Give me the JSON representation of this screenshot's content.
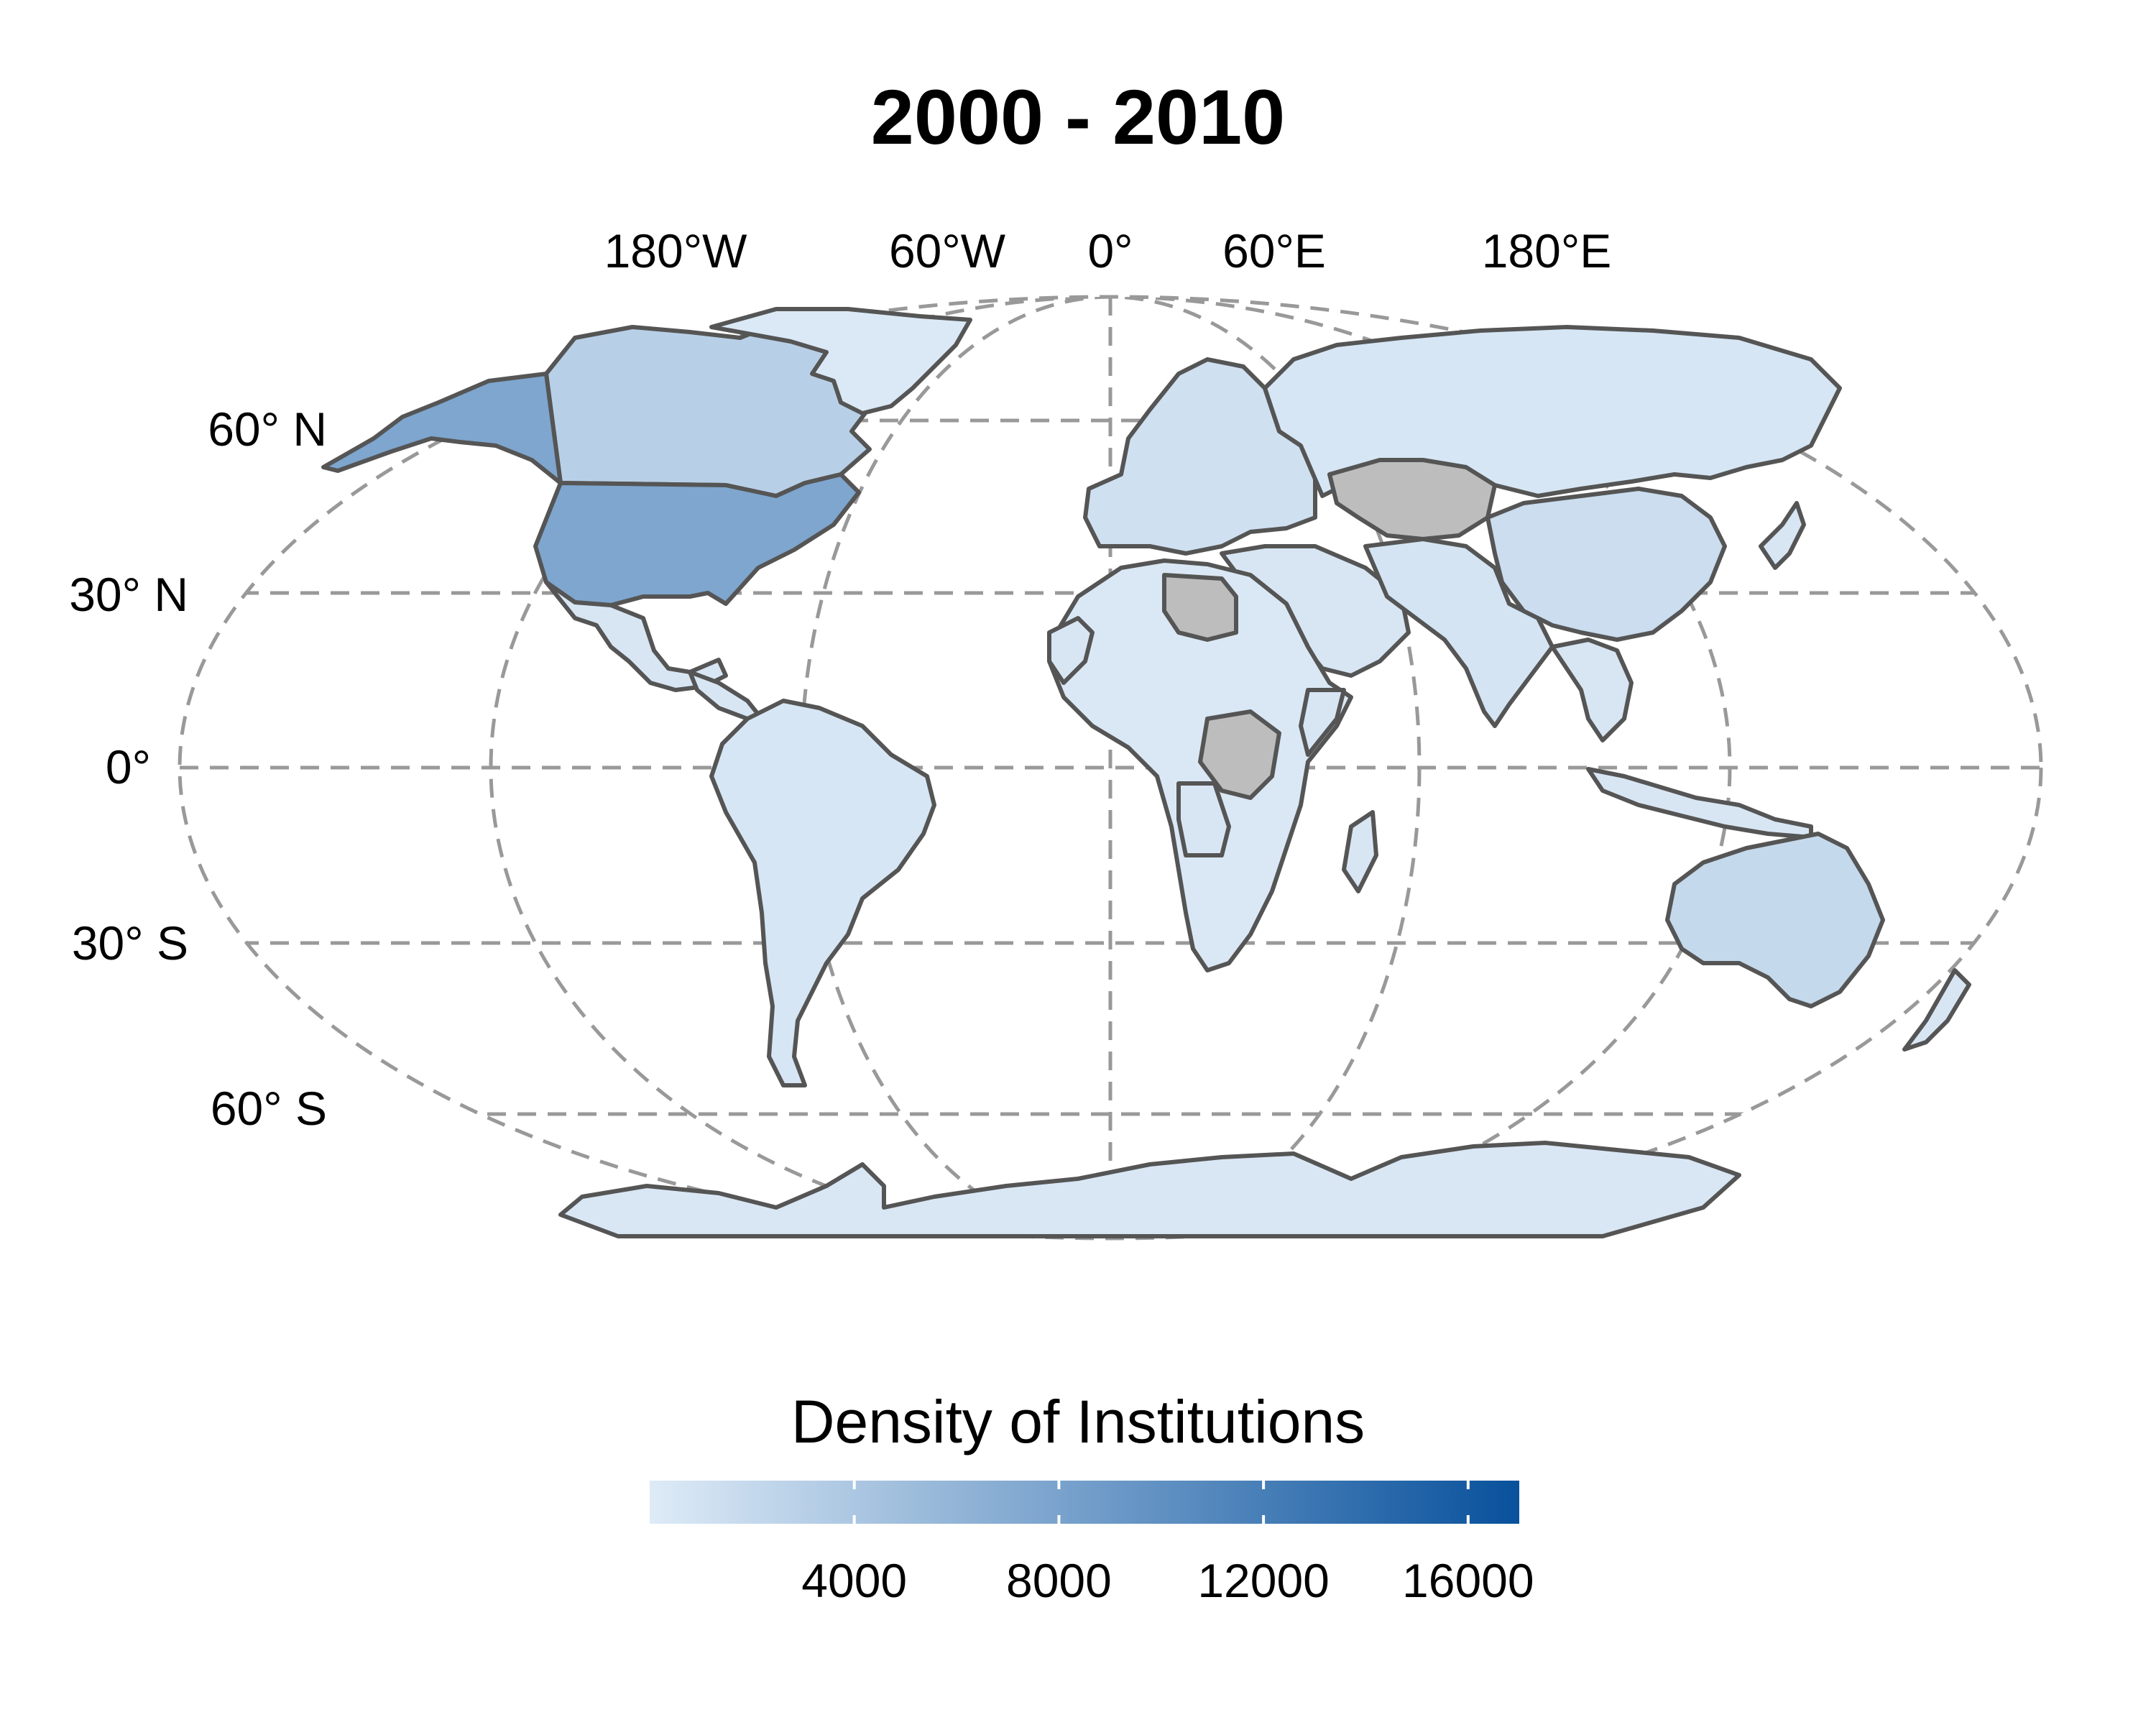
{
  "title": "2000 - 2010",
  "map": {
    "projection": "robinson",
    "lon_labels": [
      "180°W",
      "60°W",
      "0°",
      "60°E",
      "180°E"
    ],
    "lat_labels": [
      "60° N",
      "30° N",
      "0°",
      "30° S",
      "60° S"
    ],
    "grid": true,
    "no_data_color": "#bdbdbd",
    "border_color": "#555555",
    "regions": [
      {
        "name": "United States",
        "value": 7600
      },
      {
        "name": "Alaska",
        "value": 7600
      },
      {
        "name": "Canada",
        "value": 3000
      },
      {
        "name": "Mexico",
        "value": 500
      },
      {
        "name": "South America",
        "value": 600
      },
      {
        "name": "Greenland",
        "value": 200
      },
      {
        "name": "Europe",
        "value": 1200
      },
      {
        "name": "Russia",
        "value": 600
      },
      {
        "name": "China",
        "value": 1500
      },
      {
        "name": "India",
        "value": 800
      },
      {
        "name": "Australia",
        "value": 2000
      },
      {
        "name": "Antarctica",
        "value": 400
      },
      {
        "name": "Africa",
        "value": 300
      },
      {
        "name": "Kazakhstan",
        "value": null
      },
      {
        "name": "Libya",
        "value": null
      },
      {
        "name": "DR Congo",
        "value": null
      }
    ]
  },
  "legend": {
    "title": "Density of Institutions",
    "ticks": [
      "4000",
      "8000",
      "12000",
      "16000"
    ],
    "tick_values": [
      4000,
      8000,
      12000,
      16000
    ],
    "range": [
      0,
      17000
    ],
    "color_low": "#deebf7",
    "color_high": "#08519c"
  }
}
